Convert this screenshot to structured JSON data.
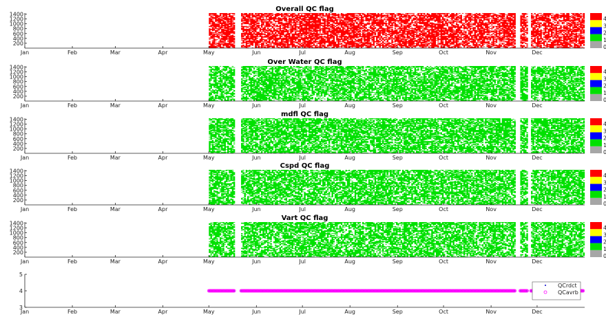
{
  "chart_data": [
    {
      "type": "heatmap",
      "title": "Overall QC flag",
      "x_ticks": [
        "Jan",
        "Feb",
        "Mar",
        "Apr",
        "May",
        "Jun",
        "Jul",
        "Aug",
        "Sep",
        "Oct",
        "Nov",
        "Dec"
      ],
      "y_ticks": [
        200,
        400,
        600,
        800,
        1000,
        1200,
        1400
      ],
      "ylim": [
        0,
        1440
      ],
      "data_start": "May 01",
      "data_end": "Dec 31",
      "gaps": [
        [
          "May 18",
          "May 21"
        ],
        [
          "Nov 17",
          "Nov 19"
        ],
        [
          "Nov 25",
          "Nov 26"
        ]
      ],
      "dominant_flag": 4,
      "density": 0.68,
      "colorbar": {
        "colors": [
          "#a6a6a6",
          "#00e000",
          "#0000ff",
          "#ffff00",
          "#ff0000"
        ],
        "labels": [
          "0",
          "1",
          "2",
          "3",
          "4"
        ]
      }
    },
    {
      "type": "heatmap",
      "title": "Over Water QC flag",
      "x_ticks": [
        "Jan",
        "Feb",
        "Mar",
        "Apr",
        "May",
        "Jun",
        "Jul",
        "Aug",
        "Sep",
        "Oct",
        "Nov",
        "Dec"
      ],
      "y_ticks": [
        200,
        400,
        600,
        800,
        1000,
        1200,
        1400
      ],
      "ylim": [
        0,
        1440
      ],
      "data_start": "May 01",
      "data_end": "Dec 31",
      "gaps": [
        [
          "May 18",
          "May 21"
        ],
        [
          "Nov 17",
          "Nov 19"
        ],
        [
          "Nov 25",
          "Nov 26"
        ]
      ],
      "dominant_flag": 1,
      "density": 0.62,
      "colorbar": {
        "colors": [
          "#a6a6a6",
          "#00e000",
          "#0000ff",
          "#ffff00",
          "#ff0000"
        ],
        "labels": [
          "0",
          "1",
          "2",
          "3",
          "4"
        ]
      }
    },
    {
      "type": "heatmap",
      "title": "mdfl QC flag",
      "x_ticks": [
        "Jan",
        "Feb",
        "Mar",
        "Apr",
        "May",
        "Jun",
        "Jul",
        "Aug",
        "Sep",
        "Oct",
        "Nov",
        "Dec"
      ],
      "y_ticks": [
        200,
        400,
        600,
        800,
        1000,
        1200,
        1400
      ],
      "ylim": [
        0,
        1440
      ],
      "data_start": "May 01",
      "data_end": "Dec 31",
      "gaps": [
        [
          "May 18",
          "May 21"
        ],
        [
          "Nov 17",
          "Nov 19"
        ],
        [
          "Nov 25",
          "Nov 26"
        ]
      ],
      "dominant_flag": 1,
      "density": 0.66,
      "colorbar": {
        "colors": [
          "#a6a6a6",
          "#00e000",
          "#0000ff",
          "#ffff00",
          "#ff0000"
        ],
        "labels": [
          "0",
          "1",
          "2",
          "3",
          "4"
        ]
      }
    },
    {
      "type": "heatmap",
      "title": "Cspd QC flag",
      "x_ticks": [
        "Jan",
        "Feb",
        "Mar",
        "Apr",
        "May",
        "Jun",
        "Jul",
        "Aug",
        "Sep",
        "Oct",
        "Nov",
        "Dec"
      ],
      "y_ticks": [
        200,
        400,
        600,
        800,
        1000,
        1200,
        1400
      ],
      "ylim": [
        0,
        1440
      ],
      "data_start": "May 01",
      "data_end": "Dec 31",
      "gaps": [
        [
          "May 18",
          "May 21"
        ],
        [
          "Nov 17",
          "Nov 19"
        ],
        [
          "Nov 25",
          "Nov 26"
        ]
      ],
      "dominant_flag": 1,
      "density": 0.66,
      "colorbar": {
        "colors": [
          "#a6a6a6",
          "#00e000",
          "#0000ff",
          "#ffff00",
          "#ff0000"
        ],
        "labels": [
          "0",
          "1",
          "2",
          "3",
          "4"
        ]
      }
    },
    {
      "type": "heatmap",
      "title": "Vart QC flag",
      "x_ticks": [
        "Jan",
        "Feb",
        "Mar",
        "Apr",
        "May",
        "Jun",
        "Jul",
        "Aug",
        "Sep",
        "Oct",
        "Nov",
        "Dec"
      ],
      "y_ticks": [
        200,
        400,
        600,
        800,
        1000,
        1200,
        1400
      ],
      "ylim": [
        0,
        1440
      ],
      "data_start": "May 01",
      "data_end": "Dec 31",
      "gaps": [
        [
          "May 18",
          "May 21"
        ],
        [
          "Nov 17",
          "Nov 19"
        ],
        [
          "Nov 25",
          "Nov 26"
        ]
      ],
      "dominant_flag": 1,
      "density": 0.62,
      "colorbar": {
        "colors": [
          "#a6a6a6",
          "#00e000",
          "#0000ff",
          "#ffff00",
          "#ff0000"
        ],
        "labels": [
          "0",
          "1",
          "2",
          "3",
          "4"
        ]
      }
    },
    {
      "type": "scatter",
      "title": "",
      "x_ticks": [
        "Jan",
        "Feb",
        "Mar",
        "Apr",
        "May",
        "Jun",
        "Jul",
        "Aug",
        "Sep",
        "Oct",
        "Nov",
        "Dec"
      ],
      "y_ticks": [
        3,
        4,
        5
      ],
      "ylim": [
        3,
        5
      ],
      "legend": {
        "placement": "right",
        "entries": [
          "QCrdct",
          "QCavrb"
        ]
      },
      "series": [
        {
          "name": "QCrdct",
          "color": "#0000cc",
          "marker": "dot",
          "value": 4,
          "start": "May 01",
          "end": "Dec 31",
          "gaps": [
            [
              "May 18",
              "May 21"
            ],
            [
              "Nov 17",
              "Nov 19"
            ],
            [
              "Nov 25",
              "Nov 26"
            ]
          ]
        },
        {
          "name": "QCavrb",
          "color": "#ff00ff",
          "marker": "circle",
          "value": 4,
          "start": "May 01",
          "end": "Dec 31",
          "gaps": [
            [
              "May 18",
              "May 21"
            ],
            [
              "Nov 17",
              "Nov 19"
            ],
            [
              "Nov 25",
              "Nov 26"
            ]
          ]
        }
      ]
    }
  ]
}
